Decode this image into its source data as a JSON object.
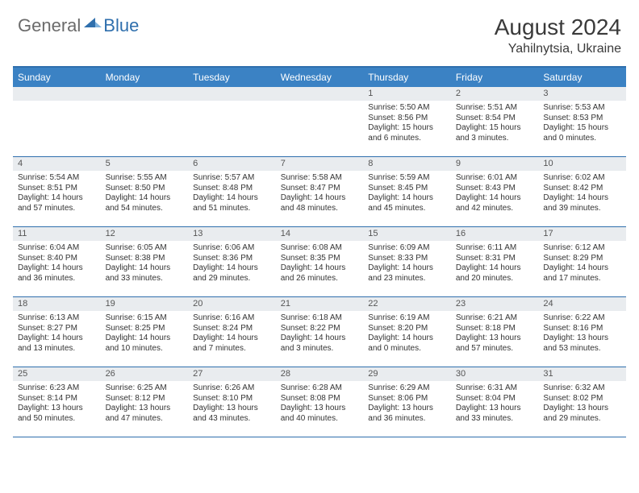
{
  "brand": {
    "general": "General",
    "blue": "Blue"
  },
  "header": {
    "month": "August 2024",
    "location": "Yahilnytsia, Ukraine"
  },
  "colors": {
    "header_bar": "#3b82c4",
    "rule": "#2f6fad",
    "daynum_bg": "#e9ecef",
    "text": "#333333"
  },
  "dow": [
    "Sunday",
    "Monday",
    "Tuesday",
    "Wednesday",
    "Thursday",
    "Friday",
    "Saturday"
  ],
  "weeks": [
    [
      null,
      null,
      null,
      null,
      {
        "n": "1",
        "sr": "Sunrise: 5:50 AM",
        "ss": "Sunset: 8:56 PM",
        "dl1": "Daylight: 15 hours",
        "dl2": "and 6 minutes."
      },
      {
        "n": "2",
        "sr": "Sunrise: 5:51 AM",
        "ss": "Sunset: 8:54 PM",
        "dl1": "Daylight: 15 hours",
        "dl2": "and 3 minutes."
      },
      {
        "n": "3",
        "sr": "Sunrise: 5:53 AM",
        "ss": "Sunset: 8:53 PM",
        "dl1": "Daylight: 15 hours",
        "dl2": "and 0 minutes."
      }
    ],
    [
      {
        "n": "4",
        "sr": "Sunrise: 5:54 AM",
        "ss": "Sunset: 8:51 PM",
        "dl1": "Daylight: 14 hours",
        "dl2": "and 57 minutes."
      },
      {
        "n": "5",
        "sr": "Sunrise: 5:55 AM",
        "ss": "Sunset: 8:50 PM",
        "dl1": "Daylight: 14 hours",
        "dl2": "and 54 minutes."
      },
      {
        "n": "6",
        "sr": "Sunrise: 5:57 AM",
        "ss": "Sunset: 8:48 PM",
        "dl1": "Daylight: 14 hours",
        "dl2": "and 51 minutes."
      },
      {
        "n": "7",
        "sr": "Sunrise: 5:58 AM",
        "ss": "Sunset: 8:47 PM",
        "dl1": "Daylight: 14 hours",
        "dl2": "and 48 minutes."
      },
      {
        "n": "8",
        "sr": "Sunrise: 5:59 AM",
        "ss": "Sunset: 8:45 PM",
        "dl1": "Daylight: 14 hours",
        "dl2": "and 45 minutes."
      },
      {
        "n": "9",
        "sr": "Sunrise: 6:01 AM",
        "ss": "Sunset: 8:43 PM",
        "dl1": "Daylight: 14 hours",
        "dl2": "and 42 minutes."
      },
      {
        "n": "10",
        "sr": "Sunrise: 6:02 AM",
        "ss": "Sunset: 8:42 PM",
        "dl1": "Daylight: 14 hours",
        "dl2": "and 39 minutes."
      }
    ],
    [
      {
        "n": "11",
        "sr": "Sunrise: 6:04 AM",
        "ss": "Sunset: 8:40 PM",
        "dl1": "Daylight: 14 hours",
        "dl2": "and 36 minutes."
      },
      {
        "n": "12",
        "sr": "Sunrise: 6:05 AM",
        "ss": "Sunset: 8:38 PM",
        "dl1": "Daylight: 14 hours",
        "dl2": "and 33 minutes."
      },
      {
        "n": "13",
        "sr": "Sunrise: 6:06 AM",
        "ss": "Sunset: 8:36 PM",
        "dl1": "Daylight: 14 hours",
        "dl2": "and 29 minutes."
      },
      {
        "n": "14",
        "sr": "Sunrise: 6:08 AM",
        "ss": "Sunset: 8:35 PM",
        "dl1": "Daylight: 14 hours",
        "dl2": "and 26 minutes."
      },
      {
        "n": "15",
        "sr": "Sunrise: 6:09 AM",
        "ss": "Sunset: 8:33 PM",
        "dl1": "Daylight: 14 hours",
        "dl2": "and 23 minutes."
      },
      {
        "n": "16",
        "sr": "Sunrise: 6:11 AM",
        "ss": "Sunset: 8:31 PM",
        "dl1": "Daylight: 14 hours",
        "dl2": "and 20 minutes."
      },
      {
        "n": "17",
        "sr": "Sunrise: 6:12 AM",
        "ss": "Sunset: 8:29 PM",
        "dl1": "Daylight: 14 hours",
        "dl2": "and 17 minutes."
      }
    ],
    [
      {
        "n": "18",
        "sr": "Sunrise: 6:13 AM",
        "ss": "Sunset: 8:27 PM",
        "dl1": "Daylight: 14 hours",
        "dl2": "and 13 minutes."
      },
      {
        "n": "19",
        "sr": "Sunrise: 6:15 AM",
        "ss": "Sunset: 8:25 PM",
        "dl1": "Daylight: 14 hours",
        "dl2": "and 10 minutes."
      },
      {
        "n": "20",
        "sr": "Sunrise: 6:16 AM",
        "ss": "Sunset: 8:24 PM",
        "dl1": "Daylight: 14 hours",
        "dl2": "and 7 minutes."
      },
      {
        "n": "21",
        "sr": "Sunrise: 6:18 AM",
        "ss": "Sunset: 8:22 PM",
        "dl1": "Daylight: 14 hours",
        "dl2": "and 3 minutes."
      },
      {
        "n": "22",
        "sr": "Sunrise: 6:19 AM",
        "ss": "Sunset: 8:20 PM",
        "dl1": "Daylight: 14 hours",
        "dl2": "and 0 minutes."
      },
      {
        "n": "23",
        "sr": "Sunrise: 6:21 AM",
        "ss": "Sunset: 8:18 PM",
        "dl1": "Daylight: 13 hours",
        "dl2": "and 57 minutes."
      },
      {
        "n": "24",
        "sr": "Sunrise: 6:22 AM",
        "ss": "Sunset: 8:16 PM",
        "dl1": "Daylight: 13 hours",
        "dl2": "and 53 minutes."
      }
    ],
    [
      {
        "n": "25",
        "sr": "Sunrise: 6:23 AM",
        "ss": "Sunset: 8:14 PM",
        "dl1": "Daylight: 13 hours",
        "dl2": "and 50 minutes."
      },
      {
        "n": "26",
        "sr": "Sunrise: 6:25 AM",
        "ss": "Sunset: 8:12 PM",
        "dl1": "Daylight: 13 hours",
        "dl2": "and 47 minutes."
      },
      {
        "n": "27",
        "sr": "Sunrise: 6:26 AM",
        "ss": "Sunset: 8:10 PM",
        "dl1": "Daylight: 13 hours",
        "dl2": "and 43 minutes."
      },
      {
        "n": "28",
        "sr": "Sunrise: 6:28 AM",
        "ss": "Sunset: 8:08 PM",
        "dl1": "Daylight: 13 hours",
        "dl2": "and 40 minutes."
      },
      {
        "n": "29",
        "sr": "Sunrise: 6:29 AM",
        "ss": "Sunset: 8:06 PM",
        "dl1": "Daylight: 13 hours",
        "dl2": "and 36 minutes."
      },
      {
        "n": "30",
        "sr": "Sunrise: 6:31 AM",
        "ss": "Sunset: 8:04 PM",
        "dl1": "Daylight: 13 hours",
        "dl2": "and 33 minutes."
      },
      {
        "n": "31",
        "sr": "Sunrise: 6:32 AM",
        "ss": "Sunset: 8:02 PM",
        "dl1": "Daylight: 13 hours",
        "dl2": "and 29 minutes."
      }
    ]
  ]
}
